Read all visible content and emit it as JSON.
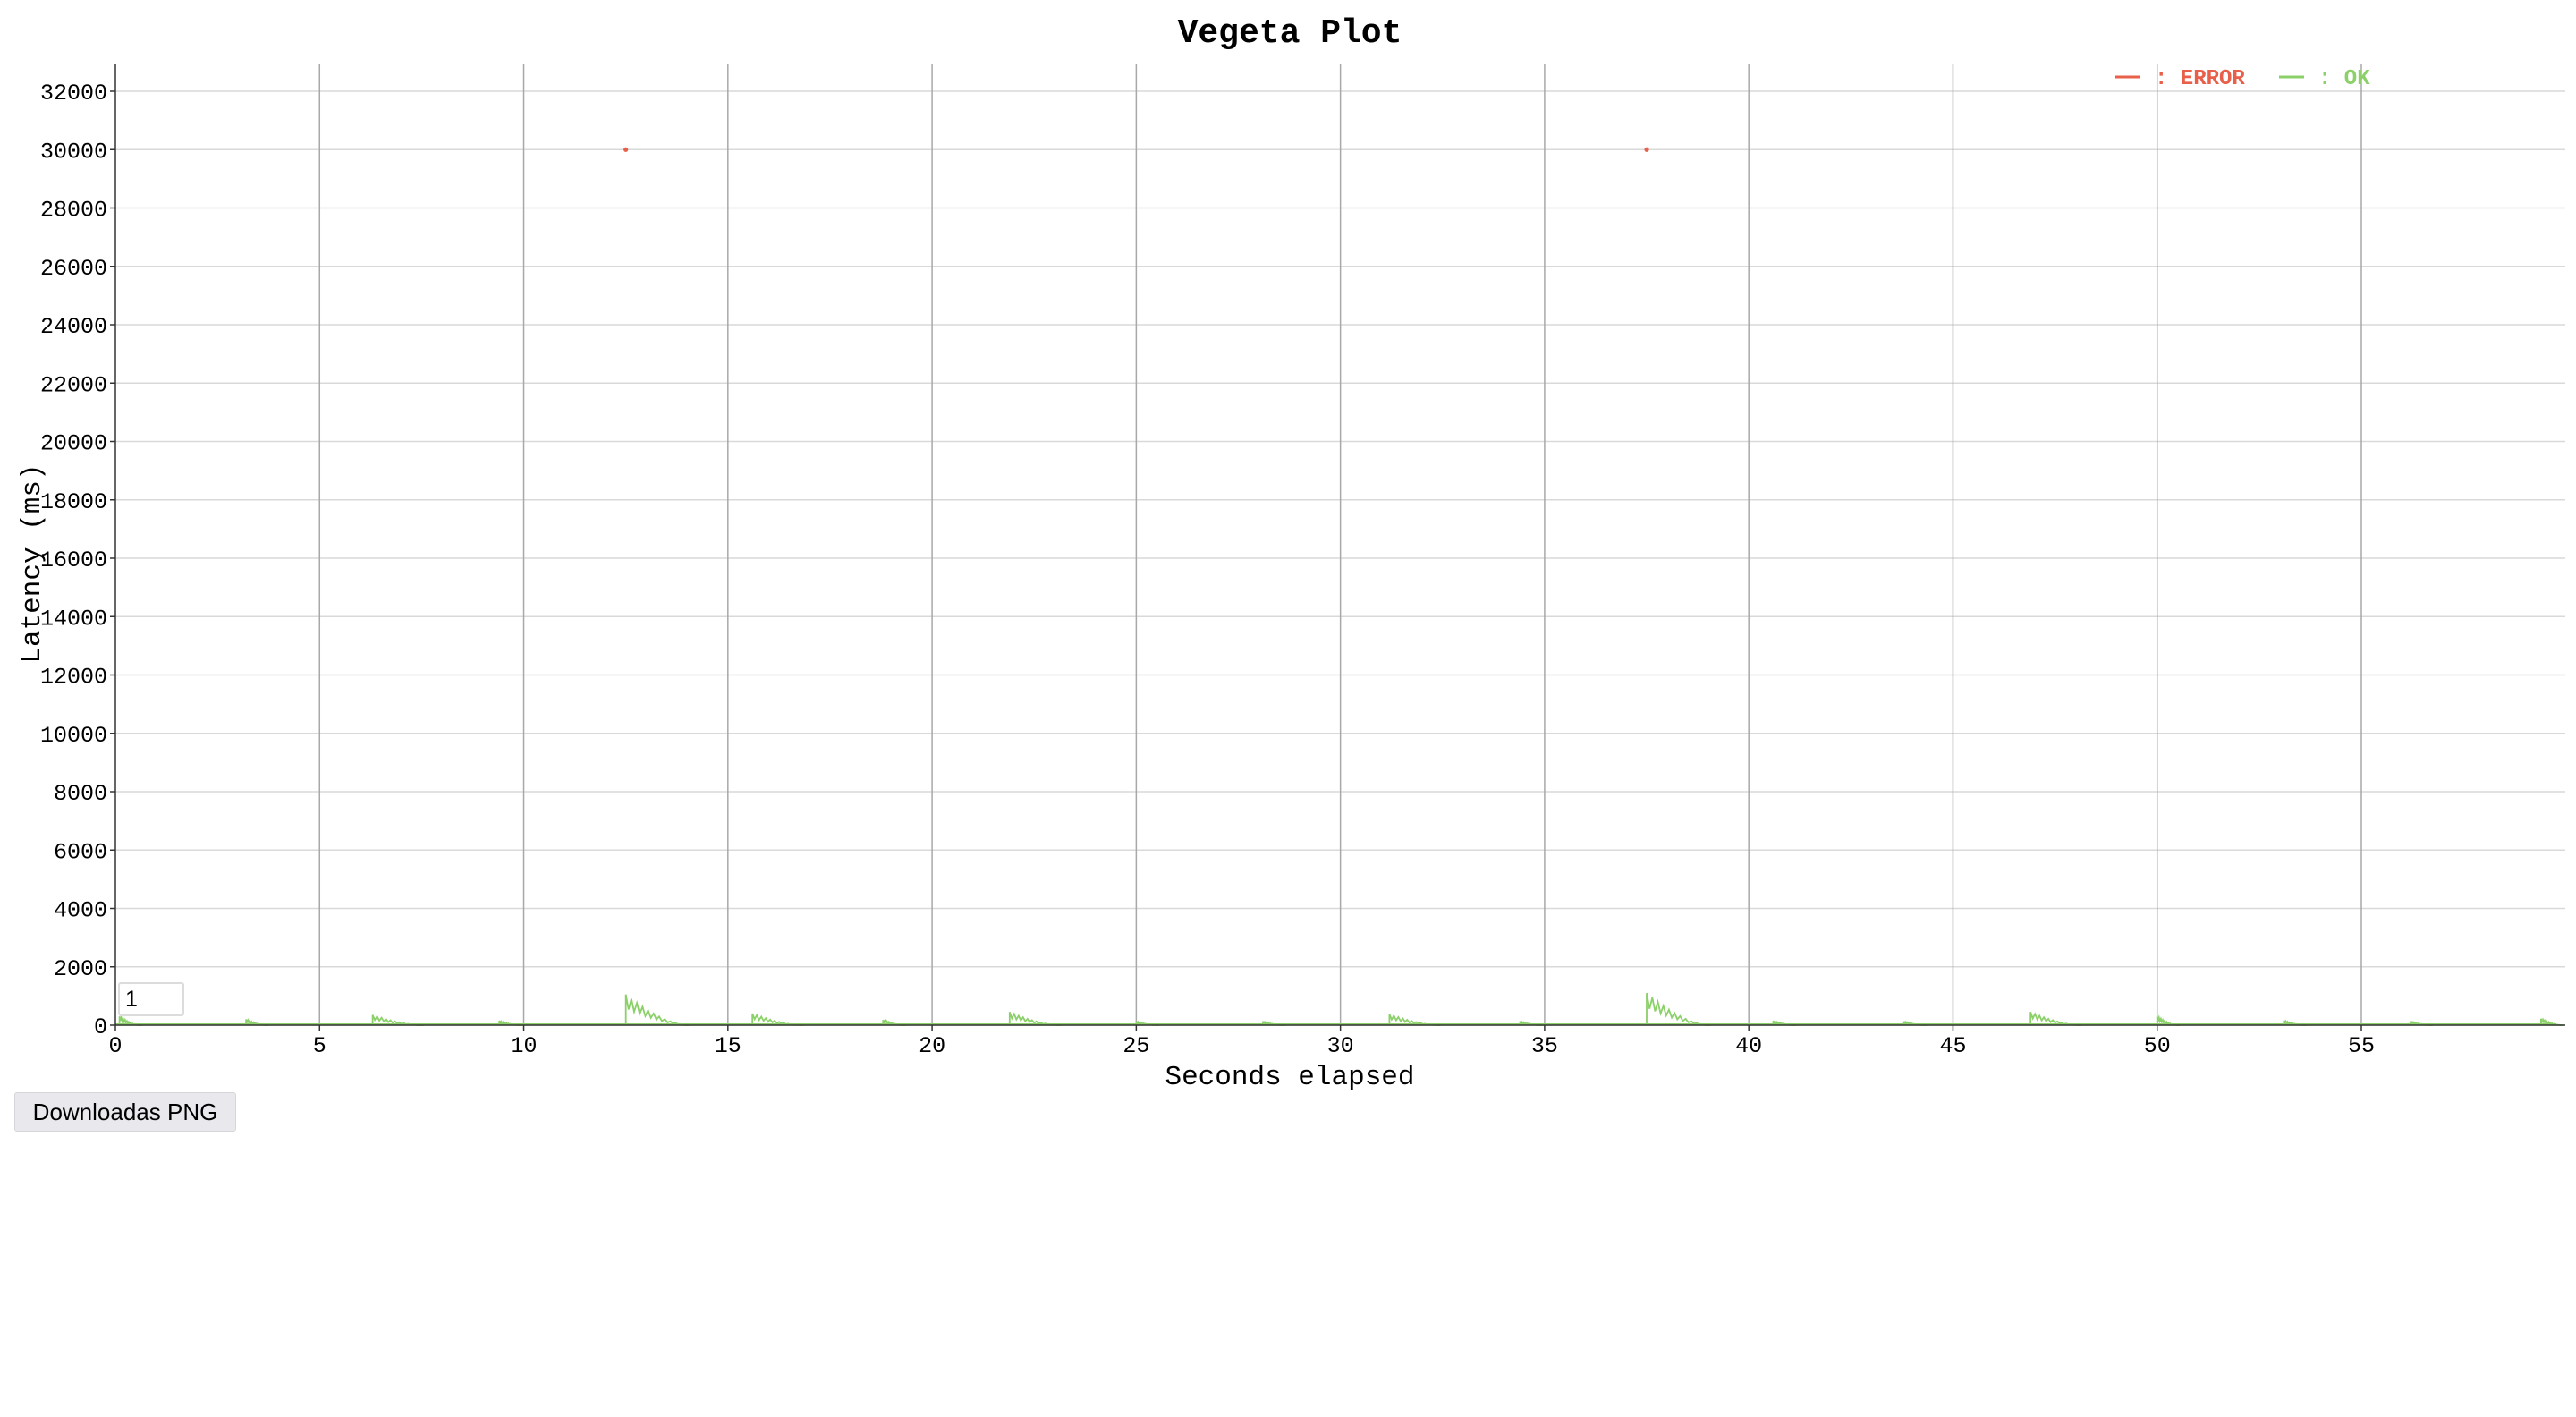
{
  "chart_data": {
    "type": "scatter",
    "title": "Vegeta Plot",
    "xlabel": "Seconds elapsed",
    "ylabel": "Latency (ms)",
    "xlim": [
      0,
      60
    ],
    "ylim": [
      0,
      33000
    ],
    "x_ticks": [
      0,
      5,
      10,
      15,
      20,
      25,
      30,
      35,
      40,
      45,
      50,
      55
    ],
    "y_ticks": [
      0,
      2000,
      4000,
      6000,
      8000,
      10000,
      12000,
      14000,
      16000,
      18000,
      20000,
      22000,
      24000,
      26000,
      28000,
      30000,
      32000
    ],
    "legend_position": "top-right",
    "series": [
      {
        "name": "ERROR",
        "color": "#e8604a",
        "points": [
          [
            12.5,
            30000
          ],
          [
            37.5,
            30000
          ]
        ]
      },
      {
        "name": "OK",
        "color": "#8bd069",
        "bursts": [
          {
            "x": 0.1,
            "peak": 300
          },
          {
            "x": 3.2,
            "peak": 200
          },
          {
            "x": 6.3,
            "peak": 350
          },
          {
            "x": 9.4,
            "peak": 150
          },
          {
            "x": 12.5,
            "peak": 1050
          },
          {
            "x": 15.6,
            "peak": 400
          },
          {
            "x": 18.8,
            "peak": 180
          },
          {
            "x": 21.9,
            "peak": 450
          },
          {
            "x": 25.0,
            "peak": 130
          },
          {
            "x": 28.1,
            "peak": 130
          },
          {
            "x": 31.2,
            "peak": 380
          },
          {
            "x": 34.4,
            "peak": 130
          },
          {
            "x": 37.5,
            "peak": 1100
          },
          {
            "x": 40.6,
            "peak": 150
          },
          {
            "x": 43.8,
            "peak": 130
          },
          {
            "x": 46.9,
            "peak": 450
          },
          {
            "x": 50.0,
            "peak": 300
          },
          {
            "x": 53.1,
            "peak": 160
          },
          {
            "x": 56.2,
            "peak": 130
          },
          {
            "x": 59.4,
            "peak": 220
          }
        ]
      }
    ]
  },
  "legend": {
    "error_label": ": ERROR",
    "ok_label": ": OK"
  },
  "controls": {
    "range_value": "1",
    "download_label": "Downloadas PNG"
  }
}
